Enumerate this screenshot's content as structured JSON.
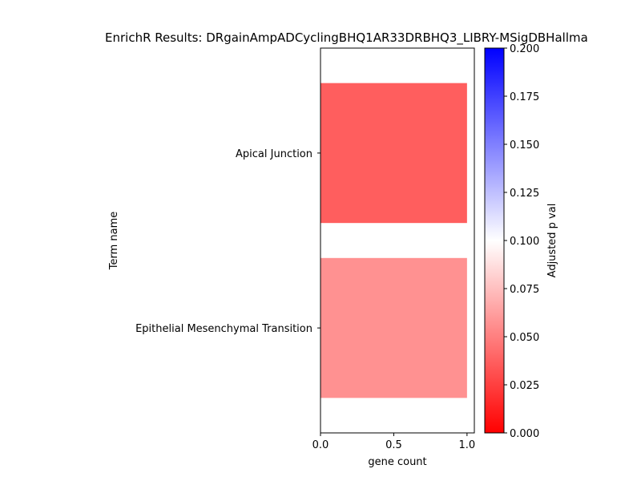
{
  "chart_data": {
    "type": "bar",
    "orientation": "horizontal",
    "title": "EnrichR Results: DRgainAmpADCyclingBHQ1AR33DRBHQ3_LIBRY-MSigDBHallma",
    "xlabel": "gene count",
    "ylabel": "Term name",
    "xlim": [
      0,
      1.05
    ],
    "x_ticks": [
      0.0,
      0.5,
      1.0
    ],
    "x_tick_labels": [
      "0.0",
      "0.5",
      "1.0"
    ],
    "categories": [
      "Apical Junction",
      "Epithelial Mesenchymal Transition"
    ],
    "values": [
      1,
      1
    ],
    "adjusted_p_values": [
      0.037,
      0.057
    ],
    "colorbar": {
      "label": "Adjusted p val",
      "range": [
        0.0,
        0.2
      ],
      "ticks": [
        0.0,
        0.025,
        0.05,
        0.075,
        0.1,
        0.125,
        0.15,
        0.175,
        0.2
      ],
      "tick_labels": [
        "0.000",
        "0.025",
        "0.050",
        "0.075",
        "0.100",
        "0.125",
        "0.150",
        "0.175",
        "0.200"
      ],
      "colormap": [
        "#ff0000",
        "#ffffff",
        "#0000ff"
      ]
    },
    "grid": false,
    "legend": "none"
  }
}
